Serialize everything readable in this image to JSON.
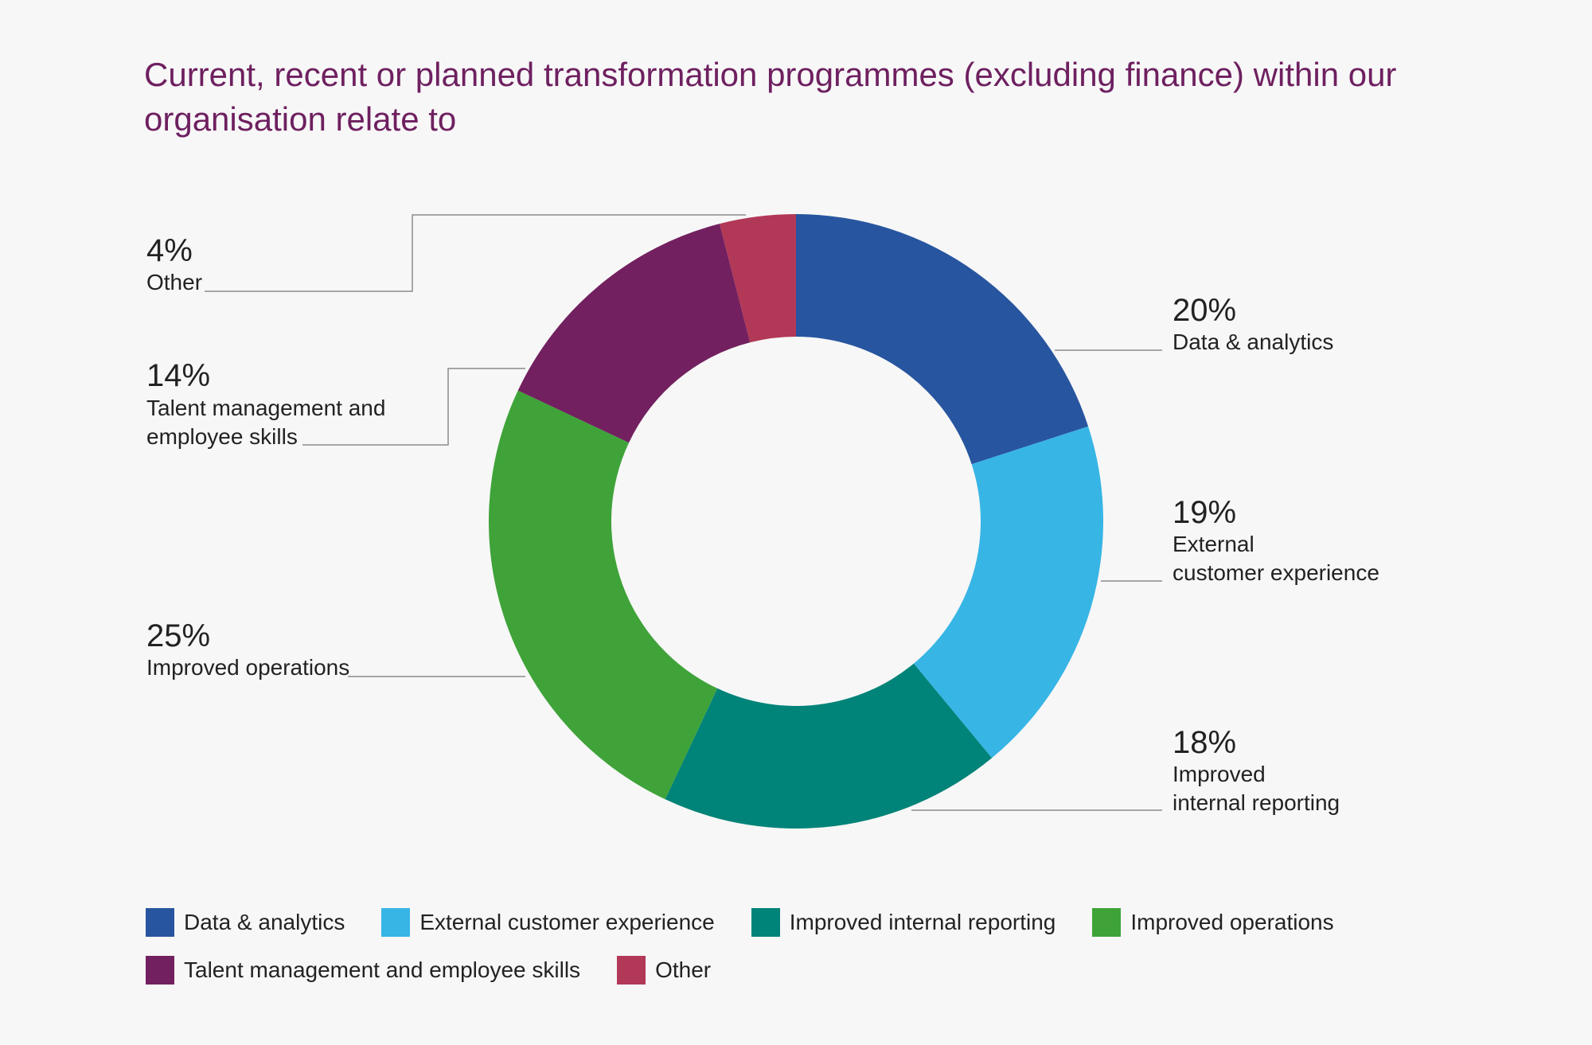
{
  "chart_data": {
    "type": "pie",
    "title": "Current, recent or planned transformation programmes (excluding finance) within our organisation relate to",
    "unit": "%",
    "donut": true,
    "start_angle": "top (12 o'clock), clockwise",
    "legend_placement": "bottom",
    "slices": [
      {
        "label": "Data & analytics",
        "value": 20,
        "display": "20%",
        "callout": [
          "Data & analytics"
        ],
        "color": "#27559f"
      },
      {
        "label": "External customer experience",
        "value": 19,
        "display": "19%",
        "callout": [
          "External",
          "customer experience"
        ],
        "color": "#37b5e5"
      },
      {
        "label": "Improved internal reporting",
        "value": 18,
        "display": "18%",
        "callout": [
          "Improved",
          "internal reporting"
        ],
        "color": "#008378"
      },
      {
        "label": "Improved operations",
        "value": 25,
        "display": "25%",
        "callout": [
          "Improved operations"
        ],
        "color": "#3fa339"
      },
      {
        "label": "Talent management and employee skills",
        "value": 14,
        "display": "14%",
        "callout": [
          "Talent management and",
          "employee skills"
        ],
        "color": "#72205f"
      },
      {
        "label": "Other",
        "value": 4,
        "display": "4%",
        "callout": [
          "Other"
        ],
        "color": "#b23857"
      }
    ]
  },
  "colors": {
    "background": "#f7f7f7",
    "title": "#6e2060",
    "text": "#222222",
    "leader_line": "#8c8c8c"
  }
}
